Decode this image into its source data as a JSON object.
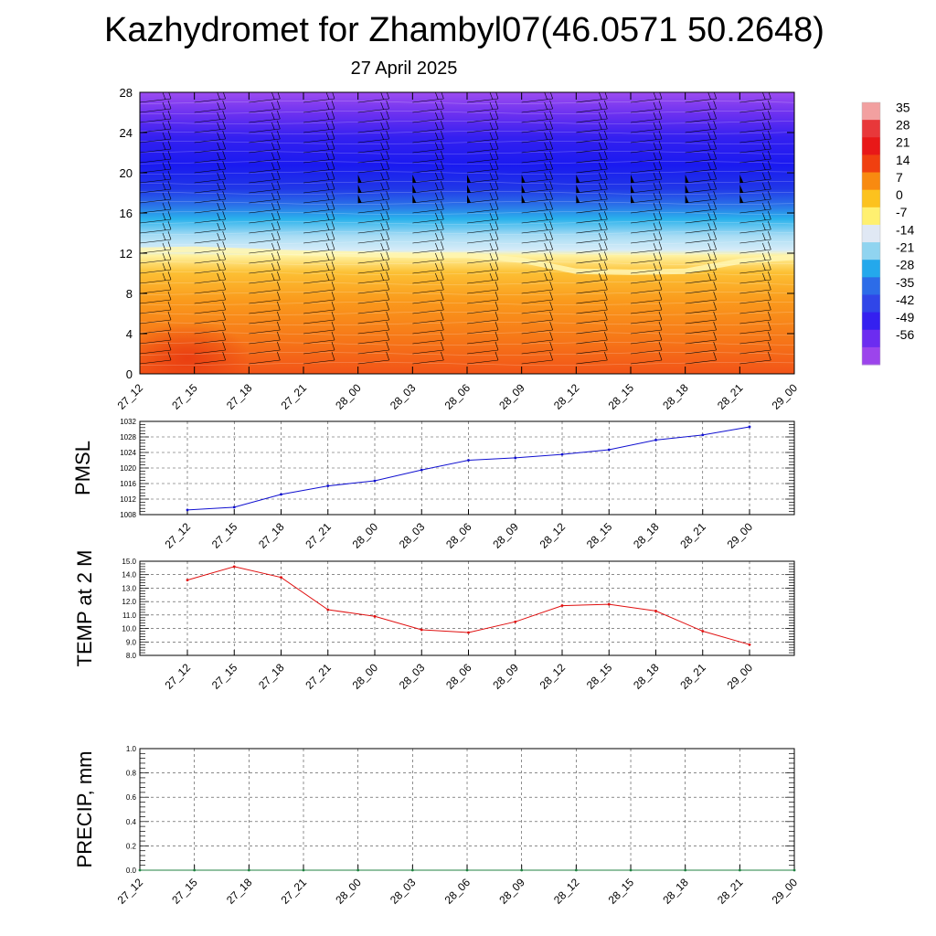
{
  "header": {
    "title": "Kazhydromet for Zhambyl07(46.0571 50.2648)",
    "subtitle": "27 April 2025"
  },
  "colors": {
    "pmsl_line": "#1010d0",
    "temp_line": "#e01010",
    "precip_line": "#208040"
  },
  "chart_data": [
    {
      "type": "heatmap",
      "name": "cross-section",
      "x_labels": [
        "27_12",
        "27_15",
        "27_18",
        "27_21",
        "28_00",
        "28_03",
        "28_06",
        "28_09",
        "28_12",
        "28_15",
        "28_18",
        "28_21",
        "29_00"
      ],
      "yticks": [
        0,
        4,
        8,
        12,
        16,
        20,
        24,
        28
      ],
      "ylim": [
        0,
        28
      ],
      "freezing_level": [
        12.3,
        12.4,
        12.2,
        12.0,
        11.9,
        11.8,
        11.8,
        11.3,
        10.2,
        10.1,
        10.2,
        11.2,
        11.6
      ],
      "colorbar": {
        "labels": [
          "35",
          "28",
          "21",
          "14",
          "7",
          "0",
          "-7",
          "-14",
          "-21",
          "-28",
          "-35",
          "-42",
          "-49",
          "-56"
        ],
        "colors": [
          "#f2a0a0",
          "#e8383a",
          "#e81818",
          "#f04010",
          "#f88a10",
          "#fcc21e",
          "#fff070",
          "#e0e8f4",
          "#90d4f0",
          "#24a8ec",
          "#2c6ce8",
          "#3046e8",
          "#3420f0",
          "#6c2cf0",
          "#9c44ec"
        ]
      }
    },
    {
      "type": "line",
      "name": "PMSL",
      "ylabel": "PMSL",
      "categories": [
        "27_12",
        "27_15",
        "27_18",
        "27_21",
        "28_00",
        "28_03",
        "28_06",
        "28_09",
        "28_12",
        "28_15",
        "28_18",
        "28_21",
        "29_00"
      ],
      "values": [
        1009.2,
        1009.9,
        1013.2,
        1015.4,
        1016.7,
        1019.5,
        1022.0,
        1022.6,
        1023.5,
        1024.7,
        1027.2,
        1028.5,
        1030.6
      ],
      "ylim": [
        1008,
        1032
      ],
      "yticks": [
        "1008",
        "1012",
        "1016",
        "1020",
        "1024",
        "1028",
        "1032"
      ]
    },
    {
      "type": "line",
      "name": "TEMP",
      "ylabel": "TEMP at 2 M",
      "categories": [
        "27_12",
        "27_15",
        "27_18",
        "27_21",
        "28_00",
        "28_03",
        "28_06",
        "28_09",
        "28_12",
        "28_15",
        "28_18",
        "28_21",
        "29_00"
      ],
      "values": [
        13.6,
        14.6,
        13.8,
        11.4,
        10.9,
        9.9,
        9.7,
        10.5,
        11.7,
        11.8,
        11.3,
        9.8,
        8.8
      ],
      "ylim": [
        8,
        15
      ],
      "yticks": [
        "8.0",
        "9.0",
        "10.0",
        "11.0",
        "12.0",
        "13.0",
        "14.0",
        "15.0"
      ]
    },
    {
      "type": "line",
      "name": "PRECIP",
      "ylabel": "PRECIP, mm",
      "categories": [
        "27_12",
        "27_15",
        "27_18",
        "27_21",
        "28_00",
        "28_03",
        "28_06",
        "28_09",
        "28_12",
        "28_15",
        "28_18",
        "28_21",
        "29_00"
      ],
      "values": [
        0,
        0,
        0,
        0,
        0,
        0,
        0,
        0,
        0,
        0,
        0,
        0,
        0
      ],
      "ylim": [
        0,
        1
      ],
      "yticks": [
        "0.0",
        "0.2",
        "0.4",
        "0.6",
        "0.8",
        "1.0"
      ]
    }
  ]
}
